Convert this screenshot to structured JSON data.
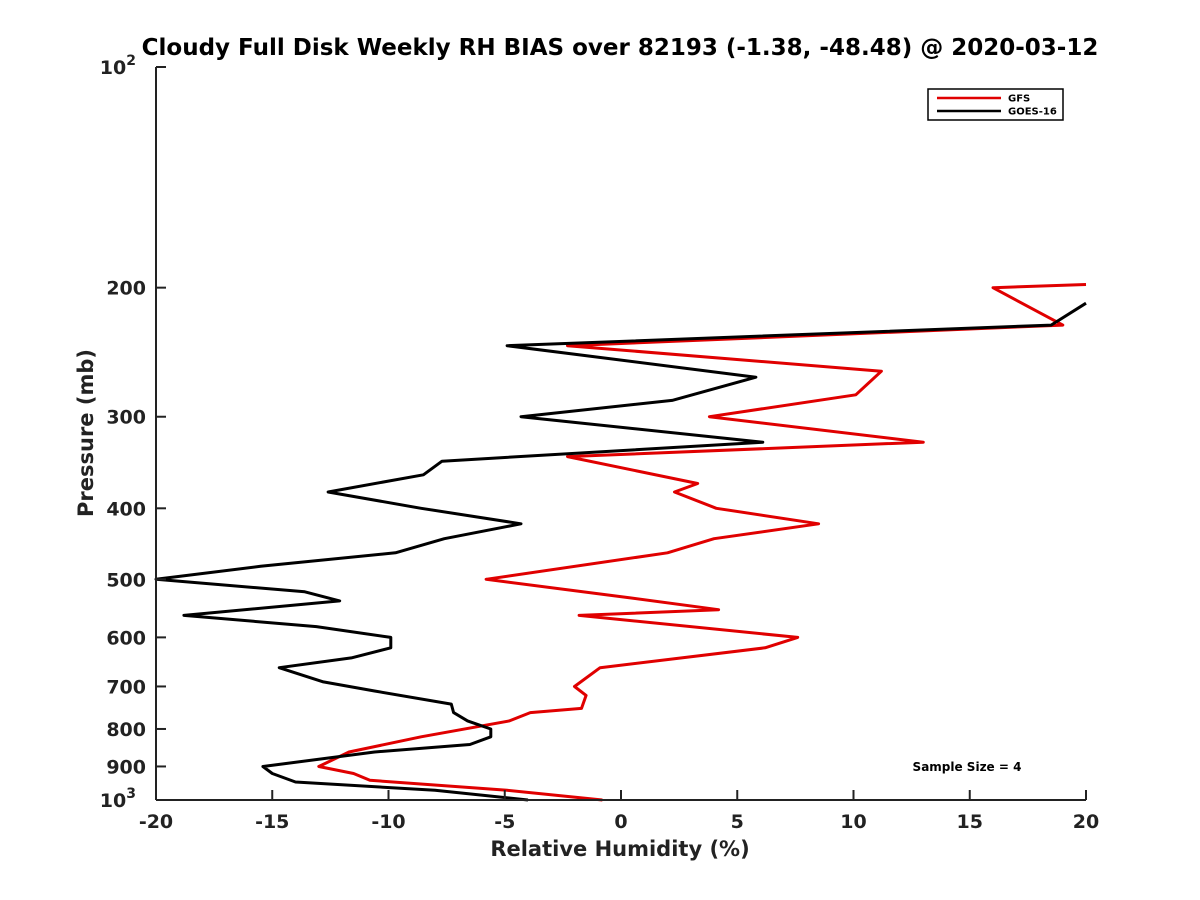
{
  "chart_data": {
    "type": "line",
    "title": "Cloudy Full Disk Weekly RH BIAS over 82193 (-1.38, -48.48) @ 2020-03-12",
    "xlabel": "Relative Humidity (%)",
    "ylabel": "Pressure (mb)",
    "xlim": [
      -20,
      20
    ],
    "ylim": [
      100,
      1000
    ],
    "y_scale": "log",
    "y_reversed": true,
    "x_ticks": [
      "-20",
      "-15",
      "-10",
      "-5",
      "0",
      "5",
      "10",
      "15",
      "20"
    ],
    "y_ticks": [
      {
        "value": 100,
        "base": "10",
        "exp": "2"
      },
      {
        "value": 200,
        "label": "200"
      },
      {
        "value": 300,
        "label": "300"
      },
      {
        "value": 400,
        "label": "400"
      },
      {
        "value": 500,
        "label": "500"
      },
      {
        "value": 600,
        "label": "600"
      },
      {
        "value": 700,
        "label": "700"
      },
      {
        "value": 800,
        "label": "800"
      },
      {
        "value": 900,
        "label": "900"
      },
      {
        "value": 1000,
        "base": "10",
        "exp": "3"
      }
    ],
    "grid": false,
    "legend_position": "top-right",
    "annotation": "Sample Size = 4",
    "series": [
      {
        "name": "GFS",
        "color": "#e00000",
        "points": [
          [
            20,
            198
          ],
          [
            16,
            200
          ],
          [
            19,
            225
          ],
          [
            -2.3,
            240
          ],
          [
            11.2,
            260
          ],
          [
            10.1,
            280
          ],
          [
            3.8,
            300
          ],
          [
            13,
            325
          ],
          [
            -2.3,
            340
          ],
          [
            3.3,
            370
          ],
          [
            2.3,
            380
          ],
          [
            4.1,
            400
          ],
          [
            8.5,
            420
          ],
          [
            4,
            440
          ],
          [
            2,
            460
          ],
          [
            -5.8,
            500
          ],
          [
            0.4,
            530
          ],
          [
            4.2,
            550
          ],
          [
            -1.8,
            560
          ],
          [
            7.6,
            600
          ],
          [
            6.2,
            620
          ],
          [
            -0.9,
            660
          ],
          [
            -2,
            700
          ],
          [
            -1.5,
            720
          ],
          [
            -1.7,
            750
          ],
          [
            -3.9,
            760
          ],
          [
            -4.8,
            780
          ],
          [
            -8.6,
            820
          ],
          [
            -11.7,
            860
          ],
          [
            -13,
            900
          ],
          [
            -11.5,
            920
          ],
          [
            -10.8,
            940
          ],
          [
            -4.9,
            970
          ],
          [
            -0.8,
            1000
          ]
        ]
      },
      {
        "name": "GOES-16",
        "color": "#000000",
        "points": [
          [
            20,
            210
          ],
          [
            18.5,
            225
          ],
          [
            -4.9,
            240
          ],
          [
            5.8,
            265
          ],
          [
            2.2,
            285
          ],
          [
            -4.3,
            300
          ],
          [
            6.1,
            325
          ],
          [
            -7.7,
            345
          ],
          [
            -8.5,
            360
          ],
          [
            -12.6,
            380
          ],
          [
            -8.6,
            400
          ],
          [
            -4.3,
            420
          ],
          [
            -7.6,
            440
          ],
          [
            -9.7,
            460
          ],
          [
            -15.5,
            480
          ],
          [
            -20,
            500
          ],
          [
            -13.6,
            520
          ],
          [
            -12.1,
            535
          ],
          [
            -18.8,
            560
          ],
          [
            -13.1,
            580
          ],
          [
            -9.9,
            600
          ],
          [
            -9.9,
            620
          ],
          [
            -11.6,
            640
          ],
          [
            -14.7,
            660
          ],
          [
            -12.8,
            690
          ],
          [
            -10.6,
            710
          ],
          [
            -7.3,
            740
          ],
          [
            -7.2,
            760
          ],
          [
            -6.6,
            780
          ],
          [
            -5.6,
            800
          ],
          [
            -5.6,
            820
          ],
          [
            -6.5,
            840
          ],
          [
            -10.6,
            860
          ],
          [
            -15.4,
            900
          ],
          [
            -15,
            920
          ],
          [
            -14,
            945
          ],
          [
            -8,
            970
          ],
          [
            -4,
            1000
          ]
        ]
      }
    ]
  }
}
